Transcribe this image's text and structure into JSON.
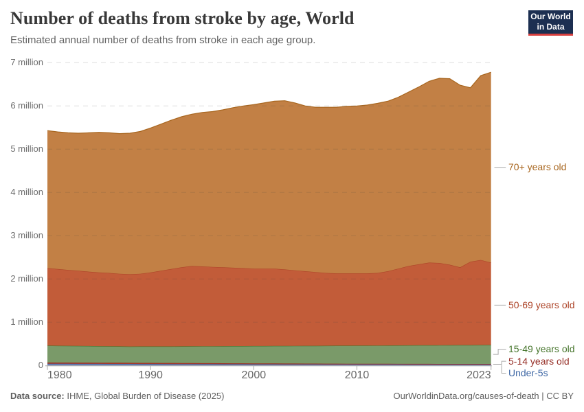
{
  "header": {
    "title": "Number of deaths from stroke by age, World",
    "subtitle": "Estimated annual number of deaths from stroke in each age group."
  },
  "logo": {
    "line1": "Our World",
    "line2": "in Data",
    "background_color": "#1c2f51",
    "stripe_color": "#d8403f"
  },
  "chart_data": {
    "type": "area",
    "stacked": true,
    "title": "Number of deaths from stroke by age, World",
    "xlabel": "",
    "ylabel": "",
    "x": [
      1980,
      1981,
      1982,
      1983,
      1984,
      1985,
      1986,
      1987,
      1988,
      1989,
      1990,
      1991,
      1992,
      1993,
      1994,
      1995,
      1996,
      1997,
      1998,
      1999,
      2000,
      2001,
      2002,
      2003,
      2004,
      2005,
      2006,
      2007,
      2008,
      2009,
      2010,
      2011,
      2012,
      2013,
      2014,
      2015,
      2016,
      2017,
      2018,
      2019,
      2020,
      2021,
      2022,
      2023
    ],
    "ylim": [
      0,
      7000000
    ],
    "y_tick_interval": 1000000,
    "grid": true,
    "legend_position": "right",
    "series": [
      {
        "name": "Under-5s",
        "fill_color": "#7081b4",
        "line_color": "#3d66a4",
        "values": [
          40000,
          39500,
          39000,
          38500,
          38000,
          37500,
          37000,
          36500,
          36000,
          35500,
          35000,
          34500,
          34000,
          33300,
          32600,
          32000,
          31400,
          30800,
          30200,
          29600,
          29000,
          28500,
          28000,
          27500,
          27000,
          26600,
          26200,
          25800,
          25400,
          25000,
          24600,
          24200,
          23900,
          23600,
          23300,
          23000,
          22800,
          22600,
          22500,
          22400,
          22300,
          22200,
          22100,
          22000
        ]
      },
      {
        "name": "5-14 years old",
        "fill_color": "#a63a2c",
        "line_color": "#962e26",
        "values": [
          30000,
          29500,
          29000,
          28500,
          28000,
          27500,
          27000,
          26500,
          26000,
          25500,
          25000,
          24500,
          24000,
          23500,
          23000,
          22500,
          22000,
          21600,
          21200,
          20800,
          20400,
          20000,
          19600,
          19200,
          18800,
          18400,
          18000,
          17600,
          17200,
          16800,
          16500,
          16200,
          15900,
          15600,
          15400,
          15200,
          15000,
          14900,
          14800,
          14700,
          14600,
          14600,
          14500,
          15000
        ]
      },
      {
        "name": "15-49 years old",
        "fill_color": "#7a9a69",
        "line_color": "#46752c",
        "values": [
          390000,
          388500,
          387000,
          385500,
          384000,
          382500,
          381000,
          379500,
          378000,
          379500,
          381000,
          382500,
          384000,
          386400,
          388800,
          391100,
          393400,
          395600,
          397300,
          399000,
          400600,
          402500,
          404400,
          406300,
          408200,
          410000,
          411800,
          413600,
          415400,
          417200,
          418900,
          420600,
          422200,
          424300,
          426300,
          427800,
          429700,
          431500,
          432700,
          434100,
          435500,
          436800,
          438200,
          439000
        ]
      },
      {
        "name": "50-69 years old",
        "fill_color": "#c25c39",
        "line_color": "#ad4428",
        "values": [
          1790000,
          1772500,
          1755000,
          1737500,
          1720000,
          1702500,
          1695000,
          1677500,
          1670000,
          1679500,
          1709000,
          1748500,
          1788000,
          1826800,
          1855600,
          1844400,
          1833200,
          1822000,
          1811300,
          1800600,
          1790000,
          1789000,
          1788000,
          1767000,
          1746000,
          1725000,
          1704000,
          1683000,
          1672000,
          1671000,
          1670000,
          1669000,
          1678000,
          1716500,
          1775000,
          1834000,
          1872500,
          1911000,
          1900000,
          1858800,
          1797600,
          1926400,
          1965200,
          1904000
        ]
      },
      {
        "name": "70+ years old",
        "fill_color": "#c28045",
        "line_color": "#a8661f",
        "values": [
          3180000,
          3170000,
          3170000,
          3180000,
          3210000,
          3240000,
          3240000,
          3240000,
          3260000,
          3290000,
          3340000,
          3390000,
          3440000,
          3480000,
          3510000,
          3560000,
          3590000,
          3640000,
          3700000,
          3750000,
          3790000,
          3830000,
          3870000,
          3900000,
          3870000,
          3820000,
          3810000,
          3830000,
          3840000,
          3860000,
          3870000,
          3890000,
          3920000,
          3930000,
          3960000,
          4020000,
          4100000,
          4190000,
          4270000,
          4300000,
          4210000,
          4020000,
          4260000,
          4400000
        ]
      }
    ],
    "y_tick_labels": [
      "0",
      "1 million",
      "2 million",
      "3 million",
      "4 million",
      "5 million",
      "6 million",
      "7 million"
    ],
    "x_tick_labels": [
      {
        "year": 1980,
        "label": "1980",
        "align": "start"
      },
      {
        "year": 1990,
        "label": "1990",
        "align": "middle"
      },
      {
        "year": 2000,
        "label": "2000",
        "align": "middle"
      },
      {
        "year": 2010,
        "label": "2010",
        "align": "middle"
      },
      {
        "year": 2023,
        "label": "2023",
        "align": "end"
      }
    ]
  },
  "footer": {
    "source_prefix": "Data source:",
    "source_text": " IHME, Global Burden of Disease (2025)",
    "credit": "OurWorldinData.org/causes-of-death | CC BY"
  }
}
